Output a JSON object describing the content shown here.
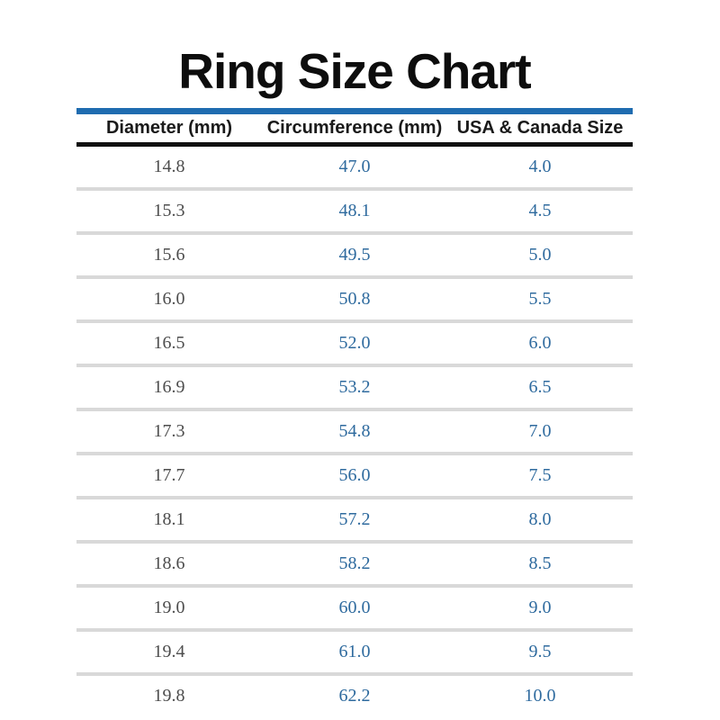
{
  "title": "Ring Size Chart",
  "colors": {
    "accent_blue": "#1f6cb0",
    "value_blue": "#2e6a9e",
    "diameter_text": "#4d4d4d",
    "header_text": "#1a1a1a",
    "header_rule": "#111111",
    "row_separator": "#d9d9d9",
    "background": "#ffffff",
    "title_text": "#0d0d0d"
  },
  "chart_data": {
    "type": "table",
    "title": "Ring Size Chart",
    "columns": [
      "Diameter (mm)",
      "Circumference (mm)",
      "USA & Canada Size"
    ],
    "rows": [
      [
        "14.8",
        "47.0",
        "4.0"
      ],
      [
        "15.3",
        "48.1",
        "4.5"
      ],
      [
        "15.6",
        "49.5",
        "5.0"
      ],
      [
        "16.0",
        "50.8",
        "5.5"
      ],
      [
        "16.5",
        "52.0",
        "6.0"
      ],
      [
        "16.9",
        "53.2",
        "6.5"
      ],
      [
        "17.3",
        "54.8",
        "7.0"
      ],
      [
        "17.7",
        "56.0",
        "7.5"
      ],
      [
        "18.1",
        "57.2",
        "8.0"
      ],
      [
        "18.6",
        "58.2",
        "8.5"
      ],
      [
        "19.0",
        "60.0",
        "9.0"
      ],
      [
        "19.4",
        "61.0",
        "9.5"
      ],
      [
        "19.8",
        "62.2",
        "10.0"
      ]
    ],
    "layout": {
      "title_rule_color": "accent_blue",
      "grid": "horizontal-separators-only",
      "column_alignment": [
        "center",
        "center",
        "center"
      ]
    }
  }
}
